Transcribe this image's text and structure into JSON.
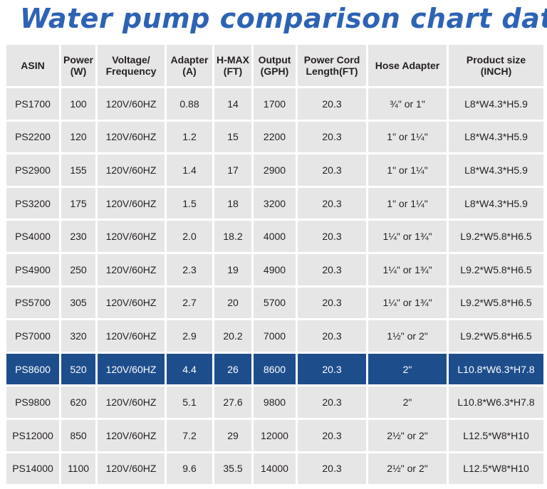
{
  "title": "Water pump comparison chart data",
  "colors": {
    "title": "#2e63b4",
    "cell_bg": "#e7e6e7",
    "highlight_bg": "#1e4d8c",
    "highlight_text": "#ffffff"
  },
  "headers": [
    "ASIN",
    "Power\n(W)",
    "Voltage/\nFrequency",
    "Adapter\n(A)",
    "H-MAX\n(FT)",
    "Output\n(GPH)",
    "Power Cord\nLength(FT)",
    "Hose Adapter",
    "Product size\n(INCH)"
  ],
  "highlight_row": 8,
  "rows": [
    [
      "PS1700",
      "100",
      "120V/60HZ",
      "0.88",
      "14",
      "1700",
      "20.3",
      "¾\" or 1\"",
      "L8*W4.3*H5.9"
    ],
    [
      "PS2200",
      "120",
      "120V/60HZ",
      "1.2",
      "15",
      "2200",
      "20.3",
      "1\" or 1¼\"",
      "L8*W4.3*H5.9"
    ],
    [
      "PS2900",
      "155",
      "120V/60HZ",
      "1.4",
      "17",
      "2900",
      "20.3",
      "1\" or 1¼\"",
      "L8*W4.3*H5.9"
    ],
    [
      "PS3200",
      "175",
      "120V/60HZ",
      "1.5",
      "18",
      "3200",
      "20.3",
      "1\" or 1¼\"",
      "L8*W4.3*H5.9"
    ],
    [
      "PS4000",
      "230",
      "120V/60HZ",
      "2.0",
      "18.2",
      "4000",
      "20.3",
      "1¼\" or 1¾\"",
      "L9.2*W5.8*H6.5"
    ],
    [
      "PS4900",
      "250",
      "120V/60HZ",
      "2.3",
      "19",
      "4900",
      "20.3",
      "1¼\" or 1¾\"",
      "L9.2*W5.8*H6.5"
    ],
    [
      "PS5700",
      "305",
      "120V/60HZ",
      "2.7",
      "20",
      "5700",
      "20.3",
      "1¼\" or 1¾\"",
      "L9.2*W5.8*H6.5"
    ],
    [
      "PS7000",
      "320",
      "120V/60HZ",
      "2.9",
      "20.2",
      "7000",
      "20.3",
      "1½\" or 2\"",
      "L9.2*W5.8*H6.5"
    ],
    [
      "PS8600",
      "520",
      "120V/60HZ",
      "4.4",
      "26",
      "8600",
      "20.3",
      "2\"",
      "L10.8*W6.3*H7.8"
    ],
    [
      "PS9800",
      "620",
      "120V/60HZ",
      "5.1",
      "27.6",
      "9800",
      "20.3",
      "2\"",
      "L10.8*W6.3*H7.8"
    ],
    [
      "PS12000",
      "850",
      "120V/60HZ",
      "7.2",
      "29",
      "12000",
      "20.3",
      "2½\" or 2\"",
      "L12.5*W8*H10"
    ],
    [
      "PS14000",
      "1100",
      "120V/60HZ",
      "9.6",
      "35.5",
      "14000",
      "20.3",
      "2½\" or 2\"",
      "L12.5*W8*H10"
    ]
  ]
}
